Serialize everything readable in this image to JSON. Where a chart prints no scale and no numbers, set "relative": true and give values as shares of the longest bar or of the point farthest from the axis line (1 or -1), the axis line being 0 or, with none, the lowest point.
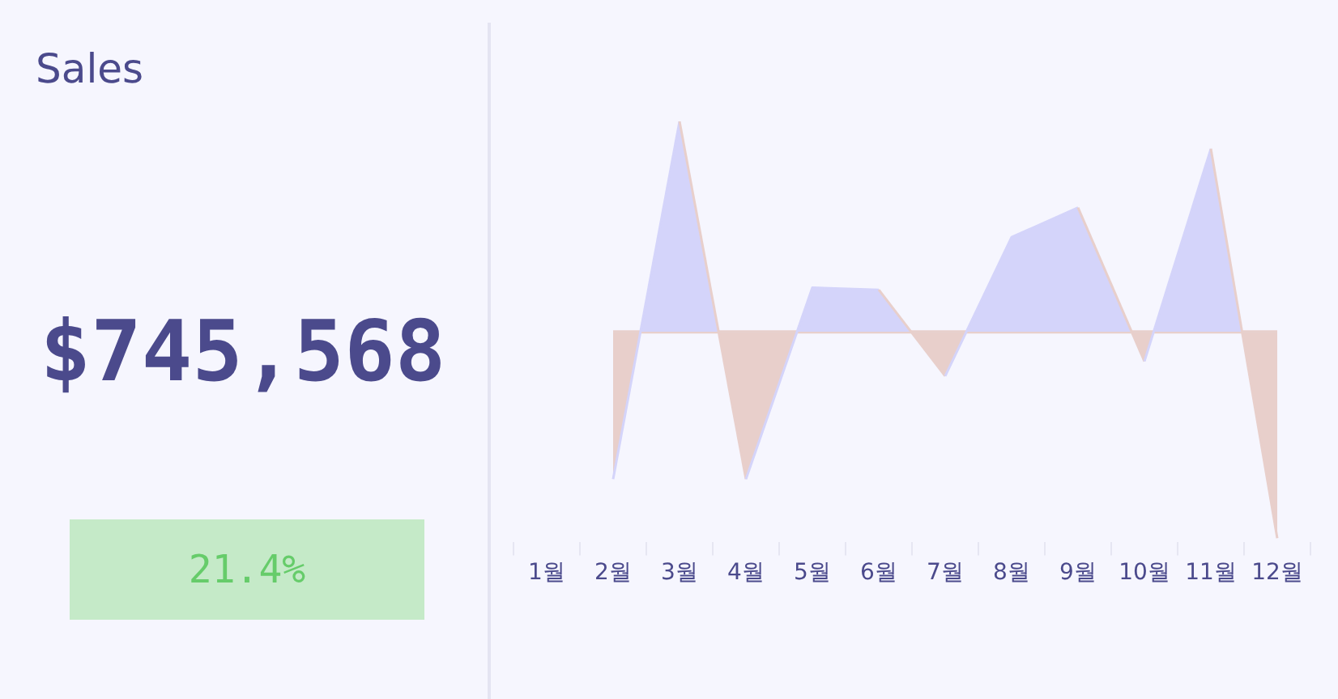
{
  "chart_data": [
    {
      "type": "other",
      "title": "Sales",
      "annotations": [
        "$745,568",
        "21.4%"
      ]
    },
    {
      "type": "area",
      "relative": true,
      "categories": [
        "1월",
        "2월",
        "3월",
        "4월",
        "5월",
        "6월",
        "7월",
        "8월",
        "9월",
        "10월",
        "11월",
        "12월"
      ],
      "series": [
        {
          "colors": [
            null,
            "#e8cfcb",
            "#d4d4fa",
            "#e8cfcb",
            "#d4d4fa",
            "#d4d4fa",
            "#e8cfcb",
            "#d4d4fa",
            "#d4d4fa",
            "#e8cfcb",
            "#d4d4fa",
            "#e8cfcb"
          ],
          "values": [
            null,
            -0.7,
            1,
            -0.7,
            0.21,
            0.2,
            -0.21,
            0.45,
            0.59,
            -0.14,
            0.87,
            -0.98
          ]
        }
      ]
    }
  ]
}
